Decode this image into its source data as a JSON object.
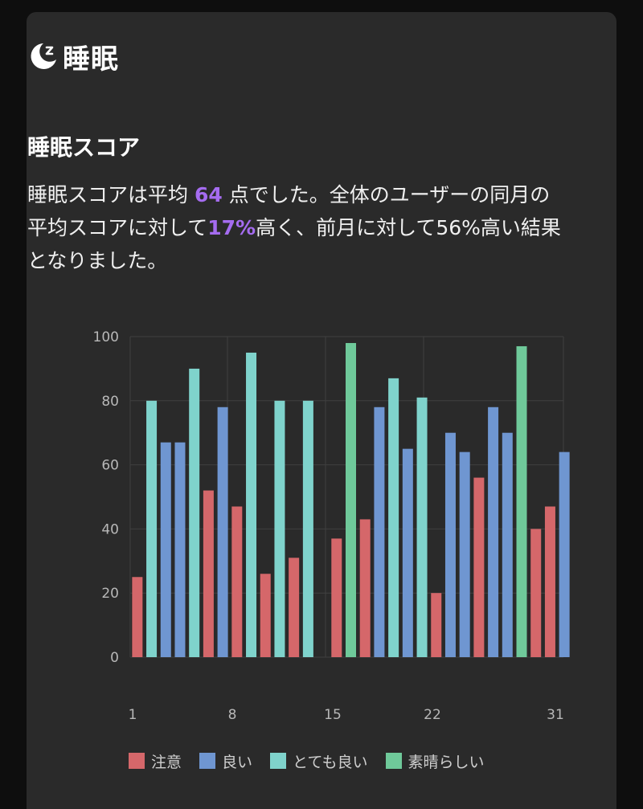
{
  "header": {
    "title": "睡眠",
    "icon": "moon-sleep-icon"
  },
  "section": {
    "title": "睡眠スコア"
  },
  "summary": {
    "part1": "睡眠スコアは平均 ",
    "avg": "64",
    "part2": " 点でした。全体のユーザーの同月の平均スコアに対して",
    "pct": "17%",
    "part3": "高く、前月に対して56%高い結果となりました。",
    "highlight_color": "#a56cf0"
  },
  "chart_data": {
    "type": "bar",
    "ylim": [
      0,
      100
    ],
    "yticks": [
      0,
      20,
      40,
      60,
      80,
      100
    ],
    "xticks": [
      1,
      8,
      15,
      22,
      31
    ],
    "xlim": [
      1,
      31
    ],
    "grid": true,
    "categories": [
      {
        "key": "caution",
        "name": "注意",
        "color": "#d5676a"
      },
      {
        "key": "good",
        "name": "良い",
        "color": "#6f96d1"
      },
      {
        "key": "very_good",
        "name": "とても良い",
        "color": "#7fd3cc"
      },
      {
        "key": "excellent",
        "name": "素晴らしい",
        "color": "#6fc99a"
      }
    ],
    "legend_position": "bottom",
    "points": [
      {
        "day": 1,
        "value": 25,
        "cat": "caution"
      },
      {
        "day": 2,
        "value": 80,
        "cat": "very_good"
      },
      {
        "day": 3,
        "value": 67,
        "cat": "good"
      },
      {
        "day": 4,
        "value": 67,
        "cat": "good"
      },
      {
        "day": 5,
        "value": 90,
        "cat": "very_good"
      },
      {
        "day": 6,
        "value": 52,
        "cat": "caution"
      },
      {
        "day": 7,
        "value": 78,
        "cat": "good"
      },
      {
        "day": 8,
        "value": 47,
        "cat": "caution"
      },
      {
        "day": 9,
        "value": 95,
        "cat": "very_good"
      },
      {
        "day": 10,
        "value": 26,
        "cat": "caution"
      },
      {
        "day": 11,
        "value": 80,
        "cat": "very_good"
      },
      {
        "day": 12,
        "value": 31,
        "cat": "caution"
      },
      {
        "day": 13,
        "value": 80,
        "cat": "very_good"
      },
      {
        "day": 15,
        "value": 37,
        "cat": "caution"
      },
      {
        "day": 16,
        "value": 98,
        "cat": "excellent"
      },
      {
        "day": 17,
        "value": 43,
        "cat": "caution"
      },
      {
        "day": 18,
        "value": 78,
        "cat": "good"
      },
      {
        "day": 19,
        "value": 87,
        "cat": "very_good"
      },
      {
        "day": 20,
        "value": 65,
        "cat": "good"
      },
      {
        "day": 21,
        "value": 81,
        "cat": "very_good"
      },
      {
        "day": 22,
        "value": 20,
        "cat": "caution"
      },
      {
        "day": 23,
        "value": 70,
        "cat": "good"
      },
      {
        "day": 24,
        "value": 64,
        "cat": "good"
      },
      {
        "day": 25,
        "value": 56,
        "cat": "caution"
      },
      {
        "day": 26,
        "value": 78,
        "cat": "good"
      },
      {
        "day": 27,
        "value": 70,
        "cat": "good"
      },
      {
        "day": 28,
        "value": 97,
        "cat": "excellent"
      },
      {
        "day": 29,
        "value": 40,
        "cat": "caution"
      },
      {
        "day": 30,
        "value": 47,
        "cat": "caution"
      },
      {
        "day": 31,
        "value": 64,
        "cat": "good"
      }
    ]
  }
}
